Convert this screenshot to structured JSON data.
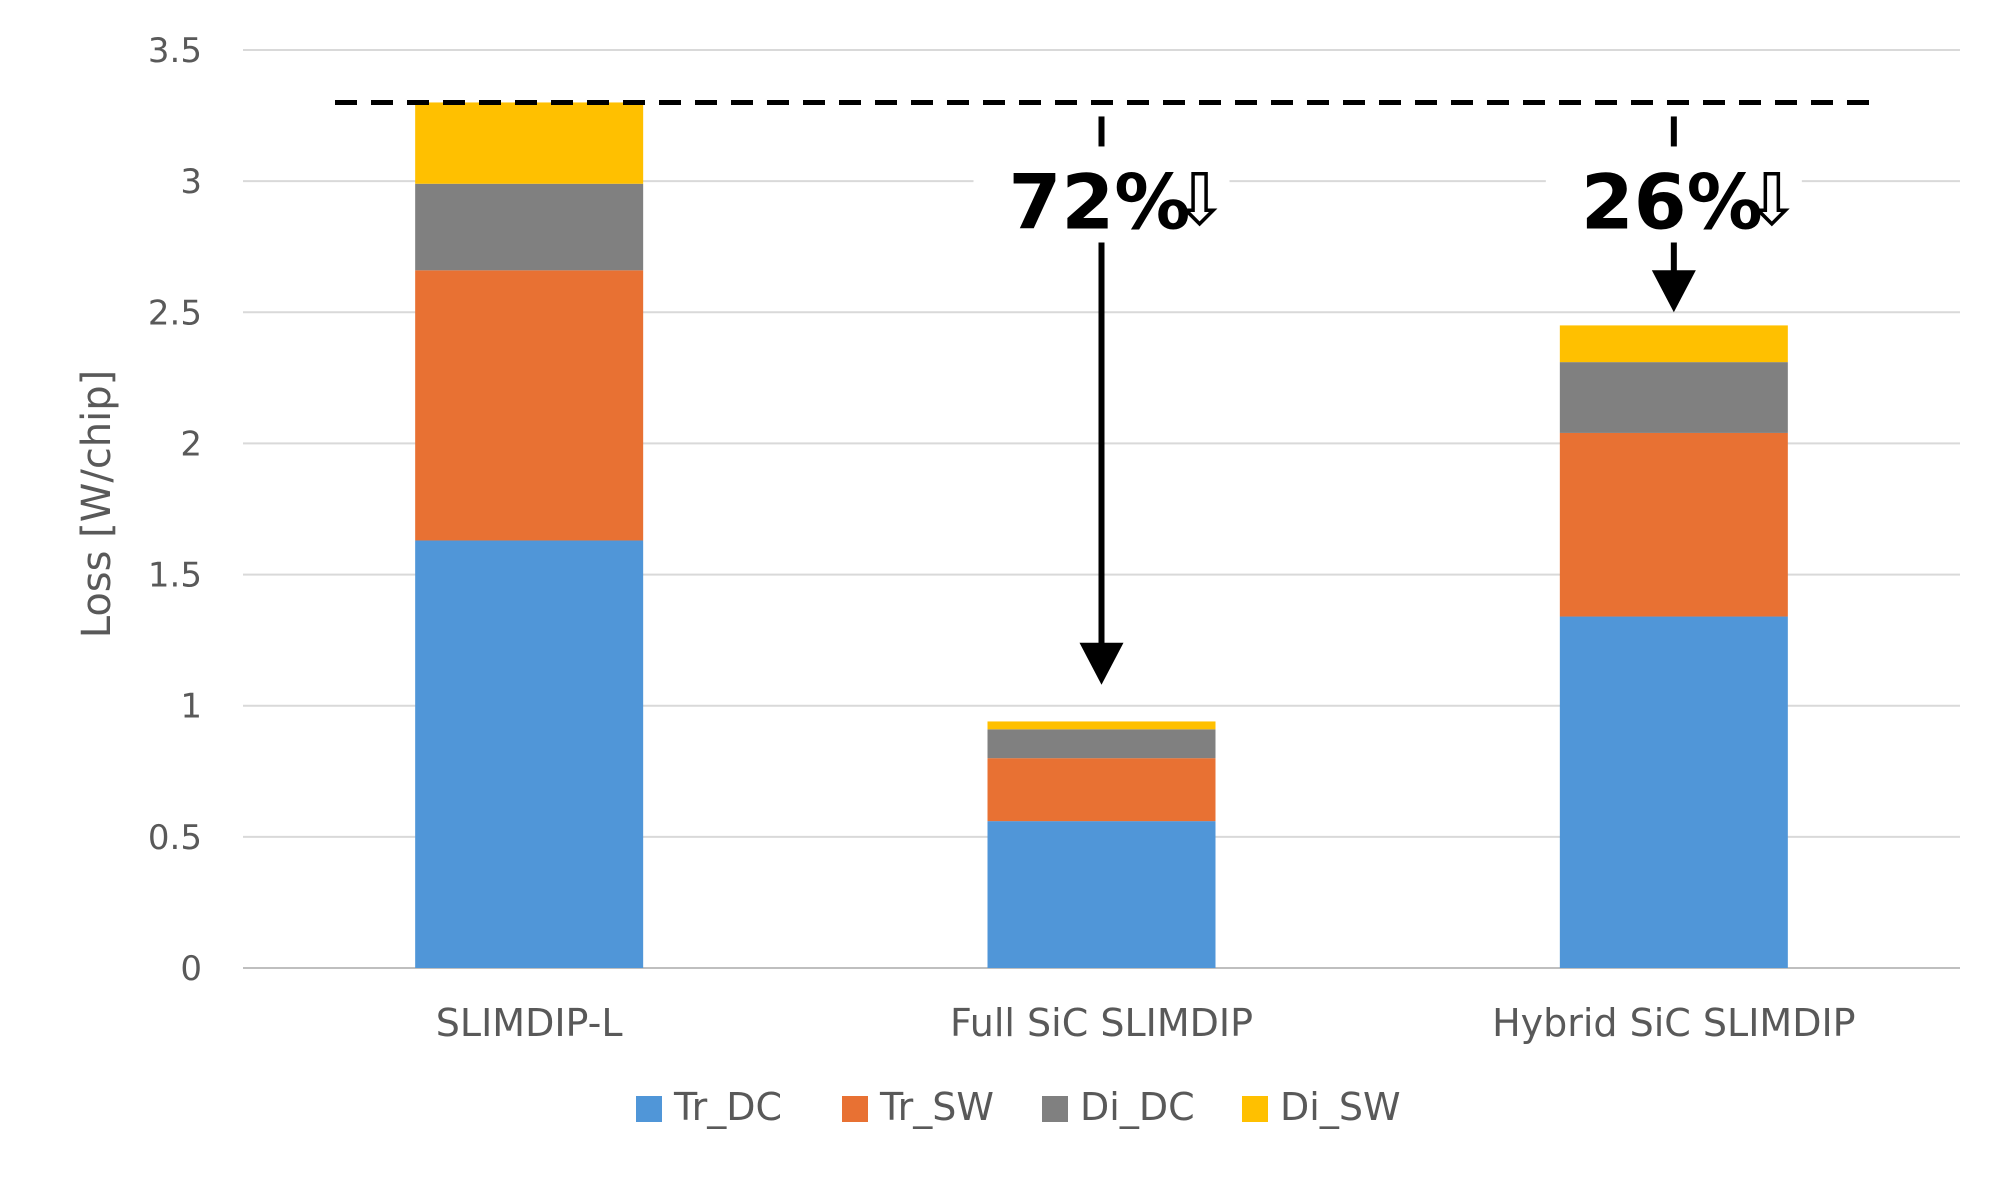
{
  "chart_data": {
    "type": "bar",
    "stacked": true,
    "categories": [
      "SLIMDIP-L",
      "Full SiC SLIMDIP",
      "Hybrid SiC SLIMDIP"
    ],
    "series": [
      {
        "name": "Tr_DC",
        "color": "#5096D8",
        "values": [
          1.63,
          0.56,
          1.34
        ]
      },
      {
        "name": "Tr_SW",
        "color": "#E87133",
        "values": [
          1.03,
          0.24,
          0.7
        ]
      },
      {
        "name": "Di_DC",
        "color": "#808080",
        "values": [
          0.33,
          0.11,
          0.27
        ]
      },
      {
        "name": "Di_SW",
        "color": "#FFC000",
        "values": [
          0.31,
          0.03,
          0.14
        ]
      }
    ],
    "xlabel": "",
    "ylabel": "Loss [W/chip]",
    "ylim": [
      0,
      3.5
    ],
    "yticks": [
      0,
      0.5,
      1,
      1.5,
      2,
      2.5,
      3,
      3.5
    ],
    "ytick_labels": [
      "0",
      "0.5",
      "1",
      "1.5",
      "2",
      "2.5",
      "3",
      "3.5"
    ],
    "grid": true,
    "legend_position": "bottom",
    "annotations": {
      "reference_line_value": 3.3,
      "reductions": [
        {
          "category": "Full SiC SLIMDIP",
          "text": "72%",
          "arrow_to_value": 1.08
        },
        {
          "category": "Hybrid SiC SLIMDIP",
          "text": "26%",
          "arrow_to_value": 2.5
        }
      ],
      "down_glyph": "⇩"
    }
  }
}
